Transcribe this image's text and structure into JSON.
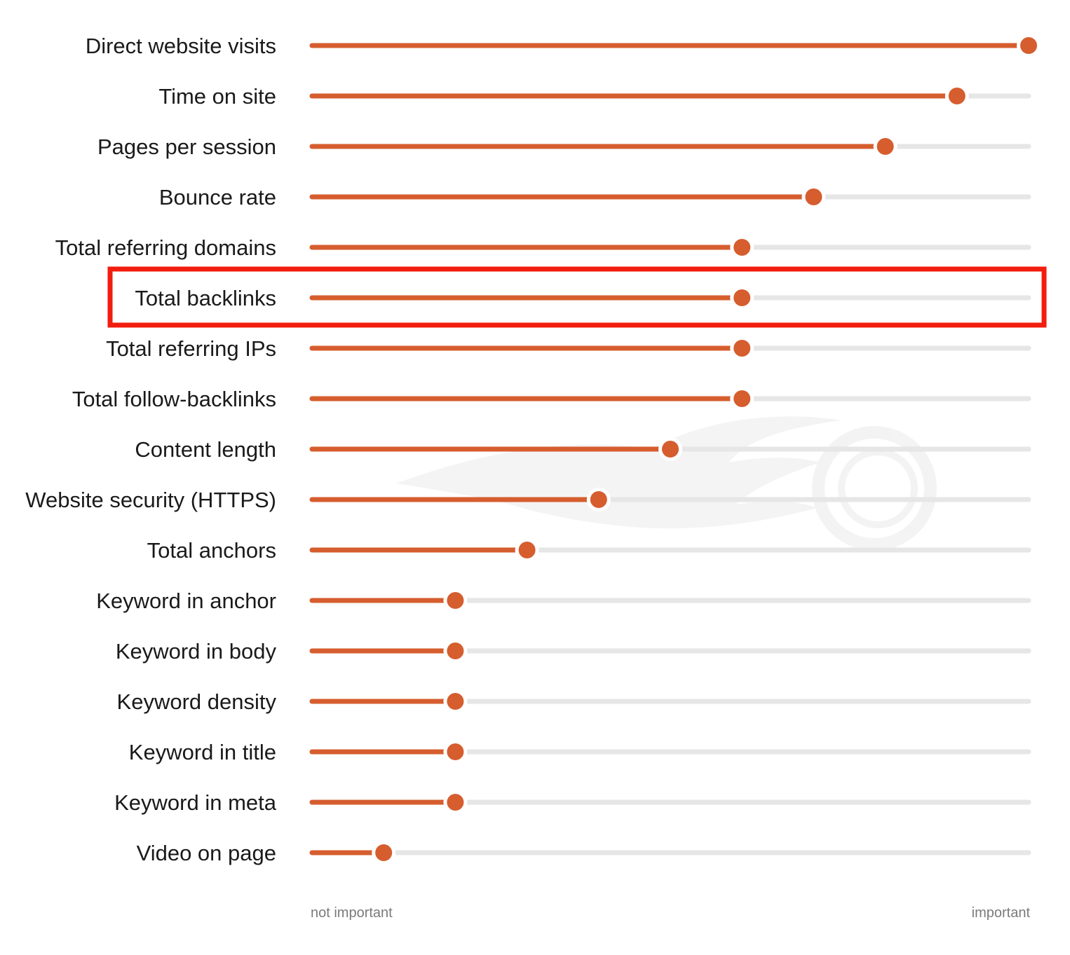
{
  "chart_data": {
    "type": "dot-slider",
    "scale_min_label": "not important",
    "scale_max_label": "important",
    "xlim": [
      0,
      1
    ],
    "highlighted_category": "Total backlinks",
    "categories": [
      "Direct website visits",
      "Time on site",
      "Pages per session",
      "Bounce rate",
      "Total referring domains",
      "Total backlinks",
      "Total referring IPs",
      "Total follow-backlinks",
      "Content length",
      "Website security (HTTPS)",
      "Total anchors",
      "Keyword in anchor",
      "Keyword in body",
      "Keyword density",
      "Keyword in title",
      "Keyword in meta",
      "Video on page"
    ],
    "values": [
      1.0,
      0.9,
      0.8,
      0.7,
      0.6,
      0.6,
      0.6,
      0.6,
      0.5,
      0.4,
      0.3,
      0.2,
      0.2,
      0.2,
      0.2,
      0.2,
      0.1
    ]
  },
  "colors": {
    "accent": "#d65d2e",
    "track": "#e6e6e6",
    "highlight": "#f21d0f",
    "watermark": "#ebebeb"
  },
  "icons": {
    "watermark": "flame-logo-icon"
  }
}
